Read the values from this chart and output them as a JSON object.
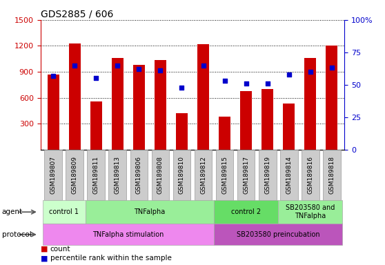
{
  "title": "GDS2885 / 606",
  "samples": [
    "GSM189807",
    "GSM189809",
    "GSM189811",
    "GSM189813",
    "GSM189806",
    "GSM189808",
    "GSM189810",
    "GSM189812",
    "GSM189815",
    "GSM189817",
    "GSM189819",
    "GSM189814",
    "GSM189816",
    "GSM189818"
  ],
  "counts": [
    870,
    1230,
    560,
    1060,
    980,
    1040,
    420,
    1220,
    380,
    680,
    700,
    530,
    1060,
    1200
  ],
  "percentiles": [
    57,
    65,
    55,
    65,
    62,
    61,
    48,
    65,
    53,
    51,
    51,
    58,
    60,
    63
  ],
  "ylim_left": [
    0,
    1500
  ],
  "ylim_right": [
    0,
    100
  ],
  "yticks_left": [
    300,
    600,
    900,
    1200,
    1500
  ],
  "yticks_right": [
    0,
    25,
    50,
    75,
    100
  ],
  "bar_color": "#cc0000",
  "dot_color": "#0000cc",
  "agent_groups": [
    {
      "label": "control 1",
      "start": 0,
      "end": 1,
      "color": "#ccffcc"
    },
    {
      "label": "TNFalpha",
      "start": 2,
      "end": 7,
      "color": "#99ee99"
    },
    {
      "label": "control 2",
      "start": 8,
      "end": 10,
      "color": "#66dd66"
    },
    {
      "label": "SB203580 and\nTNFalpha",
      "start": 11,
      "end": 13,
      "color": "#99ee99"
    }
  ],
  "protocol_groups": [
    {
      "label": "TNFalpha stimulation",
      "start": 0,
      "end": 7,
      "color": "#ee88ee"
    },
    {
      "label": "SB203580 preincubation",
      "start": 8,
      "end": 13,
      "color": "#bb55bb"
    }
  ],
  "xlabel_color": "#cc0000",
  "ylabel_right_color": "#0000cc"
}
